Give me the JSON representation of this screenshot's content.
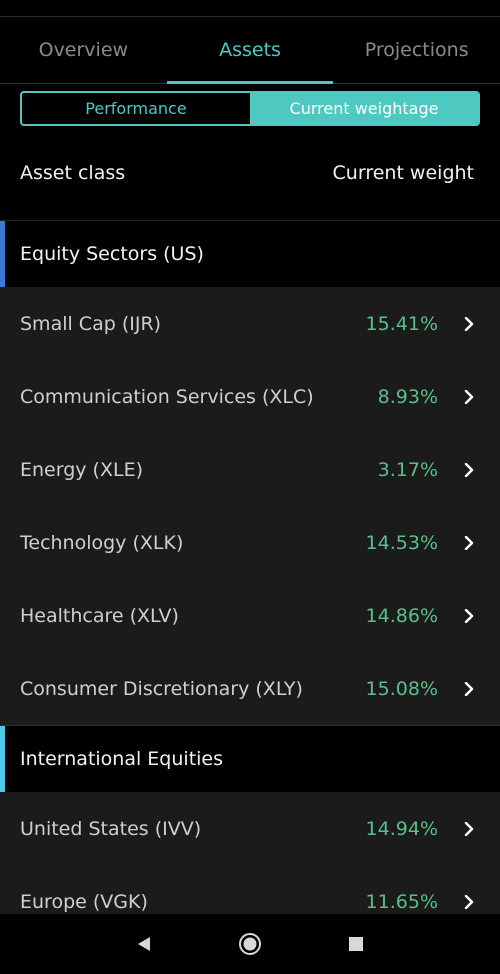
{
  "tabs": [
    {
      "label": "Overview",
      "active": false
    },
    {
      "label": "Assets",
      "active": true
    },
    {
      "label": "Projections",
      "active": false
    }
  ],
  "segmented": {
    "performance_label": "Performance",
    "current_weightage_label": "Current weightage",
    "selected": "Current weightage"
  },
  "columns": {
    "asset_class": "Asset class",
    "current_weight": "Current weight"
  },
  "groups": [
    {
      "title": "Equity Sectors (US)",
      "accent": "#3a7bd5",
      "rows": [
        {
          "label": "Small Cap (IJR)",
          "value": "15.41%"
        },
        {
          "label": "Communication Services (XLC)",
          "value": "8.93%"
        },
        {
          "label": "Energy (XLE)",
          "value": "3.17%"
        },
        {
          "label": "Technology (XLK)",
          "value": "14.53%"
        },
        {
          "label": "Healthcare (XLV)",
          "value": "14.86%"
        },
        {
          "label": "Consumer Discretionary (XLY)",
          "value": "15.08%"
        }
      ]
    },
    {
      "title": "International Equities",
      "accent": "#4ec9e8",
      "rows": [
        {
          "label": "United States (IVV)",
          "value": "14.94%"
        },
        {
          "label": "Europe (VGK)",
          "value": "11.65%"
        }
      ]
    }
  ],
  "colors": {
    "accent": "#4ec9c2",
    "positive": "#5bbf8a"
  },
  "nav": {
    "back_icon": "back-triangle-icon",
    "home_icon": "home-circle-icon",
    "recents_icon": "recents-square-icon"
  }
}
